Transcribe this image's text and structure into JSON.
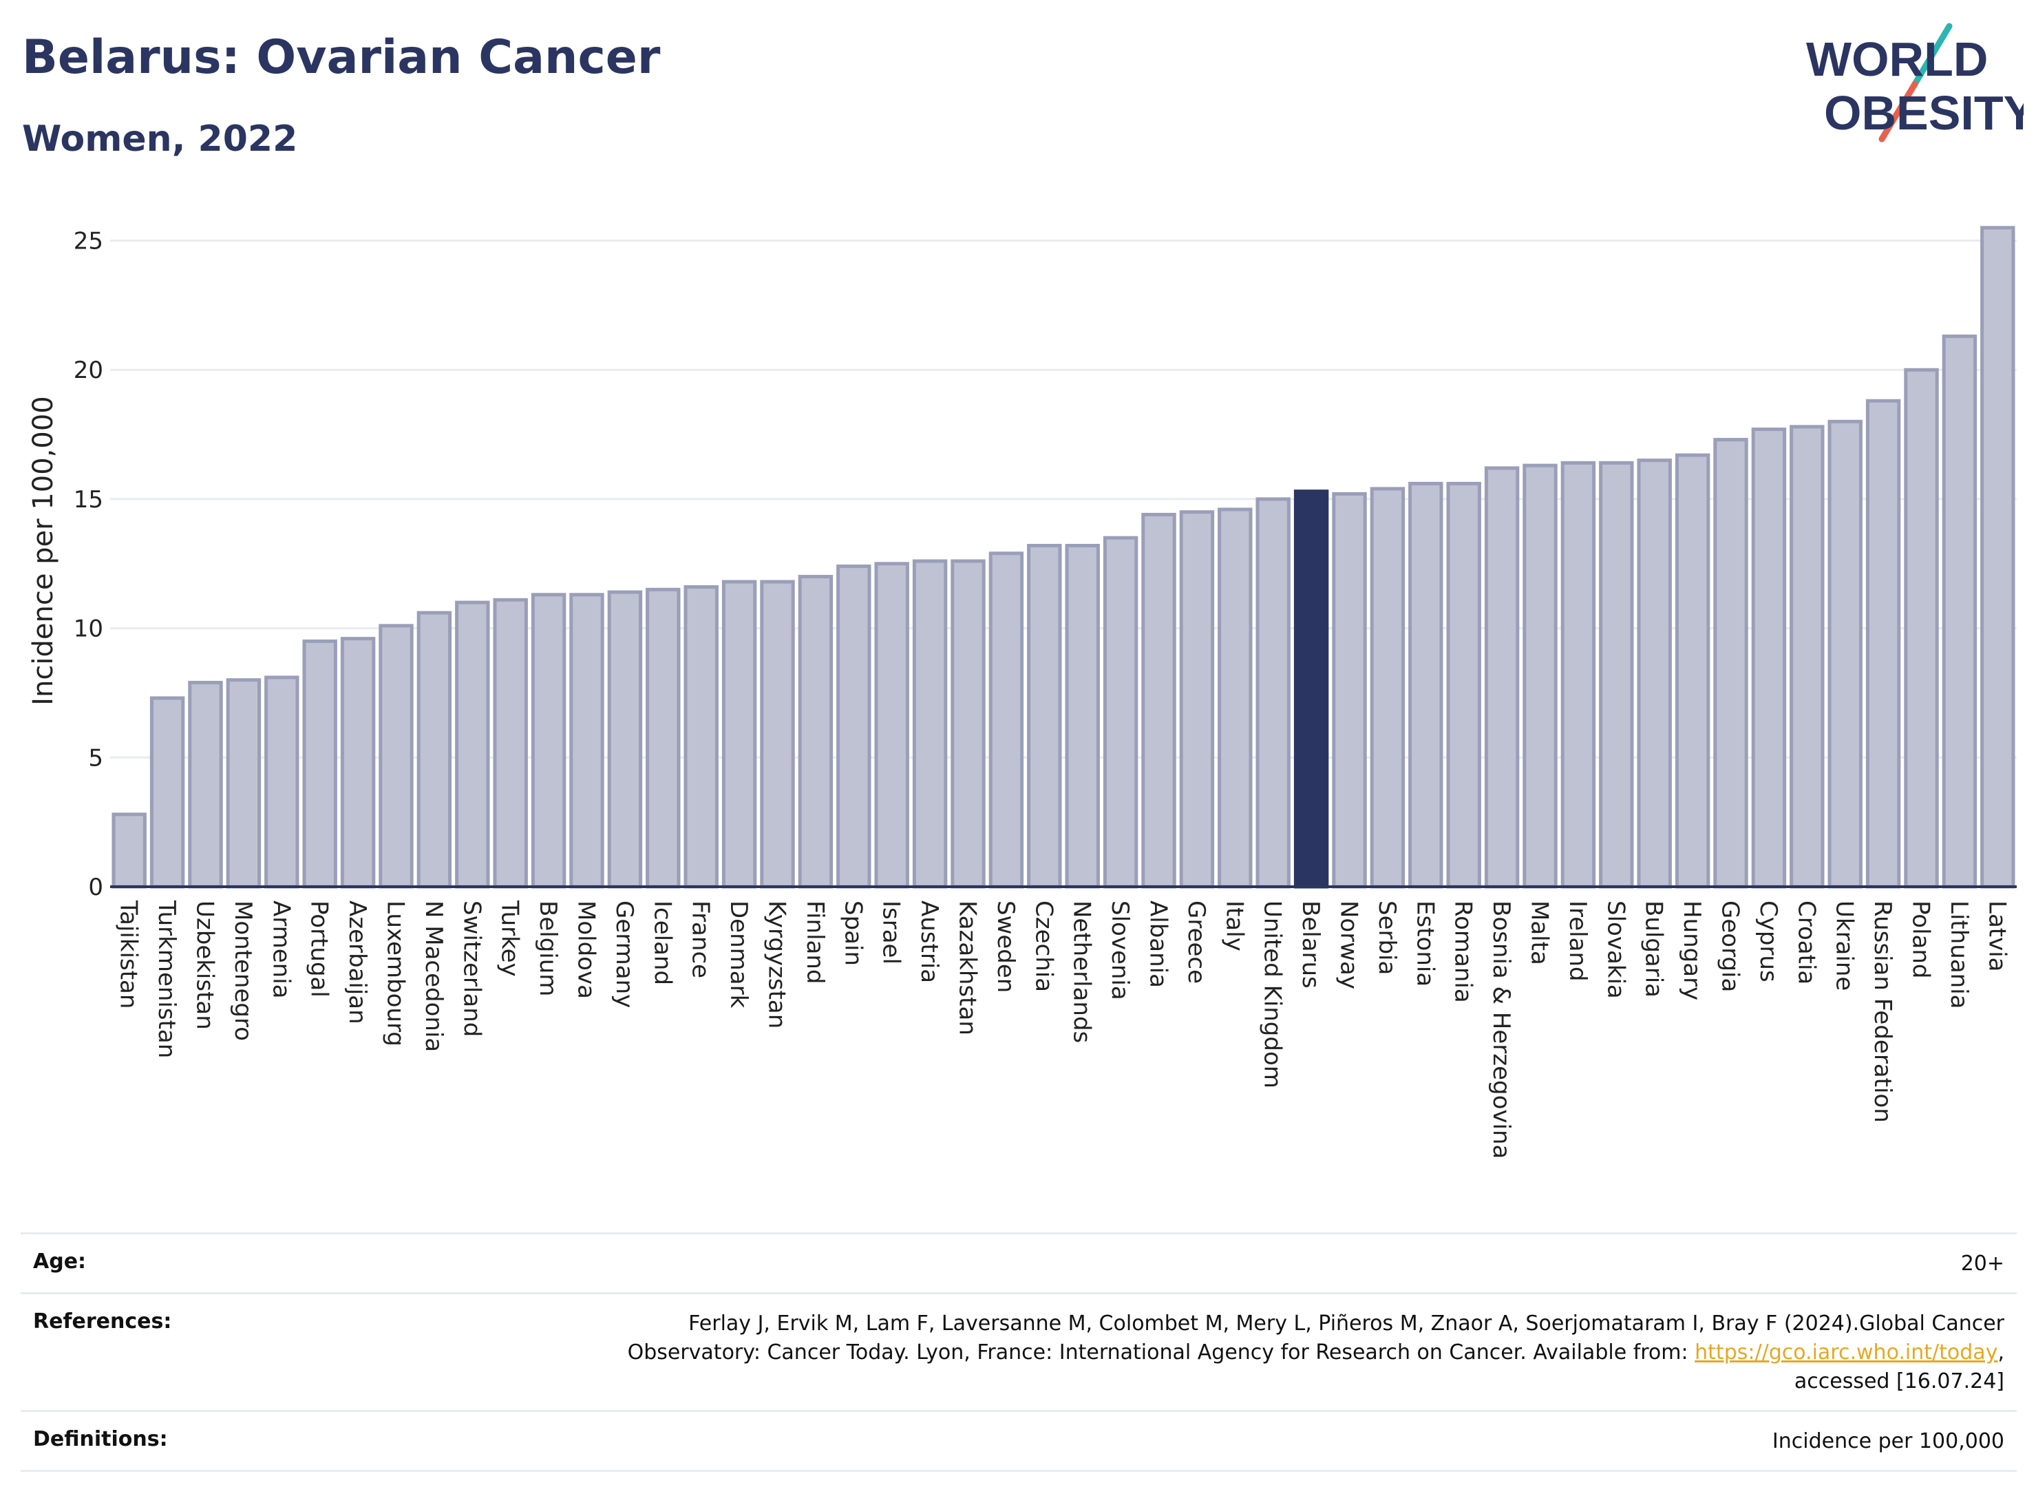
{
  "header": {
    "title": "Belarus: Ovarian Cancer",
    "subtitle": "Women, 2022"
  },
  "logo": {
    "line1": "WORLD",
    "line2": "OBESITY",
    "colors": {
      "text": "#2b3561",
      "slash_top": "#2bb5b0",
      "slash_bottom": "#e8614d"
    }
  },
  "chart_data": {
    "type": "bar",
    "ylabel": "Incidence per 100,000",
    "xlabel": "",
    "ylim": [
      0,
      26
    ],
    "yticks": [
      0,
      5,
      10,
      15,
      20,
      25
    ],
    "grid": true,
    "highlight": "Belarus",
    "colors": {
      "bar": "#bfc2d2",
      "bar_edge": "#9a9eb8",
      "highlight": "#2b3561",
      "grid": "#e9ebee",
      "axis": "#2b3561"
    },
    "categories": [
      "Tajikistan",
      "Turkmenistan",
      "Uzbekistan",
      "Montenegro",
      "Armenia",
      "Portugal",
      "Azerbaijan",
      "Luxembourg",
      "N Macedonia",
      "Switzerland",
      "Turkey",
      "Belgium",
      "Moldova",
      "Germany",
      "Iceland",
      "France",
      "Denmark",
      "Kyrgyzstan",
      "Finland",
      "Spain",
      "Israel",
      "Austria",
      "Kazakhstan",
      "Sweden",
      "Czechia",
      "Netherlands",
      "Slovenia",
      "Albania",
      "Greece",
      "Italy",
      "United Kingdom",
      "Belarus",
      "Norway",
      "Serbia",
      "Estonia",
      "Romania",
      "Bosnia & Herzegovina",
      "Malta",
      "Ireland",
      "Slovakia",
      "Bulgaria",
      "Hungary",
      "Georgia",
      "Cyprus",
      "Croatia",
      "Ukraine",
      "Russian Federation",
      "Poland",
      "Lithuania",
      "Latvia"
    ],
    "values": [
      2.8,
      7.3,
      7.9,
      8.0,
      8.1,
      9.5,
      9.6,
      10.1,
      10.6,
      11.0,
      11.1,
      11.3,
      11.3,
      11.4,
      11.5,
      11.6,
      11.8,
      11.8,
      12.0,
      12.4,
      12.5,
      12.6,
      12.6,
      12.9,
      13.2,
      13.2,
      13.5,
      14.4,
      14.5,
      14.6,
      15.0,
      15.3,
      15.2,
      15.4,
      15.6,
      15.6,
      16.2,
      16.3,
      16.4,
      16.4,
      16.5,
      16.7,
      17.3,
      17.7,
      17.8,
      18.0,
      18.8,
      20.0,
      21.3,
      25.5
    ]
  },
  "footer": {
    "age_label": "Age:",
    "age_value": "20+",
    "references_label": "References:",
    "references_line1": "Ferlay J, Ervik M, Lam F, Laversanne M, Colombet M, Mery L, Piñeros M, Znaor A, Soerjomataram I, Bray F (2024).Global Cancer",
    "references_line2_prefix": "Observatory: Cancer Today. Lyon, France: International Agency for Research on Cancer. Available from: ",
    "references_link": "https://gco.iarc.who.int/today",
    "references_line2_suffix": ",",
    "references_line3": "accessed [16.07.24]",
    "definitions_label": "Definitions:",
    "definitions_value": "Incidence per 100,000"
  }
}
